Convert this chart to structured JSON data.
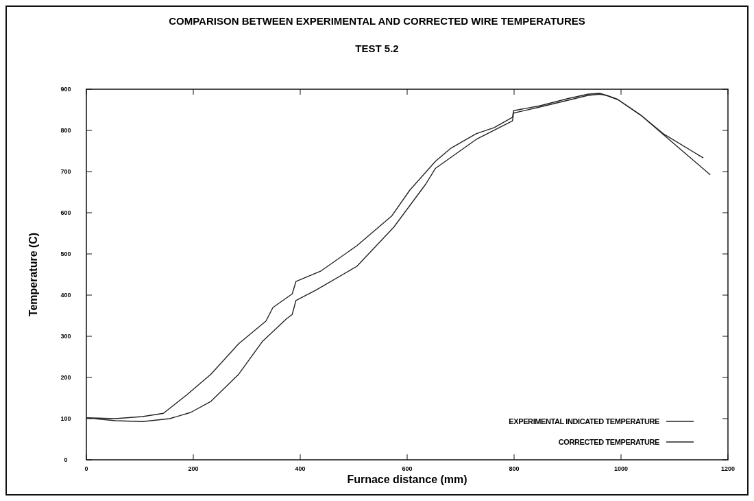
{
  "chart_data": {
    "type": "line",
    "title": "COMPARISON BETWEEN EXPERIMENTAL AND CORRECTED WIRE TEMPERATURES",
    "subtitle": "TEST 5.2",
    "xlabel": "Furnace distance (mm)",
    "ylabel": "Temperature (C)",
    "xlim": [
      0,
      1200
    ],
    "xticks": [
      0,
      200,
      400,
      600,
      800,
      1000,
      1200
    ],
    "ylim": [
      0,
      900
    ],
    "yticks": [
      0,
      100,
      200,
      300,
      400,
      500,
      600,
      700,
      800,
      900
    ],
    "grid": false,
    "legend": "bottom right",
    "line_style": "solid",
    "series": [
      {
        "name": "EXPERIMENTAL INDICATED TEMPERATURE",
        "color": "#222222",
        "x": [
          0,
          54,
          105,
          144,
          188,
          233,
          285,
          336,
          349,
          385,
          392,
          438,
          506,
          571,
          605,
          653,
          682,
          729,
          763,
          797,
          799,
          849,
          900,
          938,
          960,
          973,
          994,
          1037,
          1079,
          1154
        ],
        "values": [
          102,
          100,
          105,
          113,
          158,
          208,
          282,
          337,
          370,
          403,
          433,
          458,
          520,
          592,
          655,
          725,
          757,
          792,
          807,
          832,
          848,
          860,
          877,
          888,
          890,
          885,
          875,
          837,
          792,
          733
        ]
      },
      {
        "name": "CORRECTED TEMPERATURE",
        "color": "#222222",
        "x": [
          0,
          54,
          105,
          156,
          195,
          233,
          285,
          329,
          374,
          385,
          392,
          429,
          506,
          575,
          635,
          653,
          729,
          797,
          799,
          849,
          900,
          938,
          960,
          973,
          994,
          1037,
          1079,
          1167
        ],
        "values": [
          102,
          95,
          93,
          100,
          115,
          142,
          208,
          287,
          342,
          353,
          387,
          412,
          470,
          565,
          670,
          708,
          778,
          823,
          842,
          857,
          873,
          885,
          888,
          885,
          875,
          837,
          790,
          692
        ]
      }
    ]
  }
}
